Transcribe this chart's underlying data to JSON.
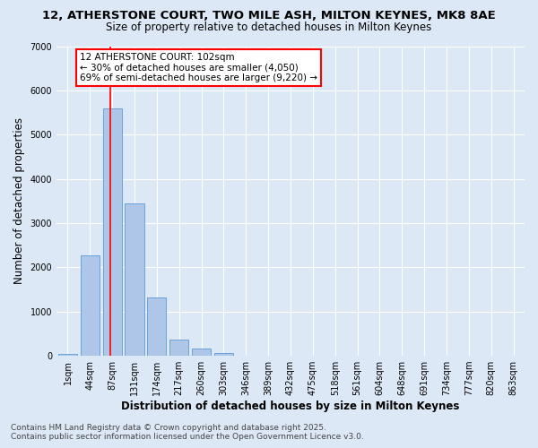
{
  "title_line1": "12, ATHERSTONE COURT, TWO MILE ASH, MILTON KEYNES, MK8 8AE",
  "title_line2": "Size of property relative to detached houses in Milton Keynes",
  "xlabel": "Distribution of detached houses by size in Milton Keynes",
  "ylabel": "Number of detached properties",
  "categories": [
    "1sqm",
    "44sqm",
    "87sqm",
    "131sqm",
    "174sqm",
    "217sqm",
    "260sqm",
    "303sqm",
    "346sqm",
    "389sqm",
    "432sqm",
    "475sqm",
    "518sqm",
    "561sqm",
    "604sqm",
    "648sqm",
    "691sqm",
    "734sqm",
    "777sqm",
    "820sqm",
    "863sqm"
  ],
  "values": [
    50,
    2280,
    5600,
    3450,
    1320,
    370,
    160,
    55,
    10,
    0,
    0,
    0,
    0,
    0,
    0,
    0,
    0,
    0,
    0,
    0,
    0
  ],
  "bar_color": "#aec6e8",
  "bar_edge_color": "#5b9bd5",
  "vline_x_index": 2,
  "vline_color": "red",
  "annotation_text": "12 ATHERSTONE COURT: 102sqm\n← 30% of detached houses are smaller (4,050)\n69% of semi-detached houses are larger (9,220) →",
  "annotation_box_color": "white",
  "annotation_box_edge_color": "red",
  "ylim": [
    0,
    7000
  ],
  "yticks": [
    0,
    1000,
    2000,
    3000,
    4000,
    5000,
    6000,
    7000
  ],
  "bg_color": "#dce8f5",
  "grid_color": "white",
  "footer_line1": "Contains HM Land Registry data © Crown copyright and database right 2025.",
  "footer_line2": "Contains public sector information licensed under the Open Government Licence v3.0.",
  "title_fontsize": 9.5,
  "subtitle_fontsize": 8.5,
  "axis_label_fontsize": 8.5,
  "tick_fontsize": 7,
  "annotation_fontsize": 7.5,
  "footer_fontsize": 6.5
}
